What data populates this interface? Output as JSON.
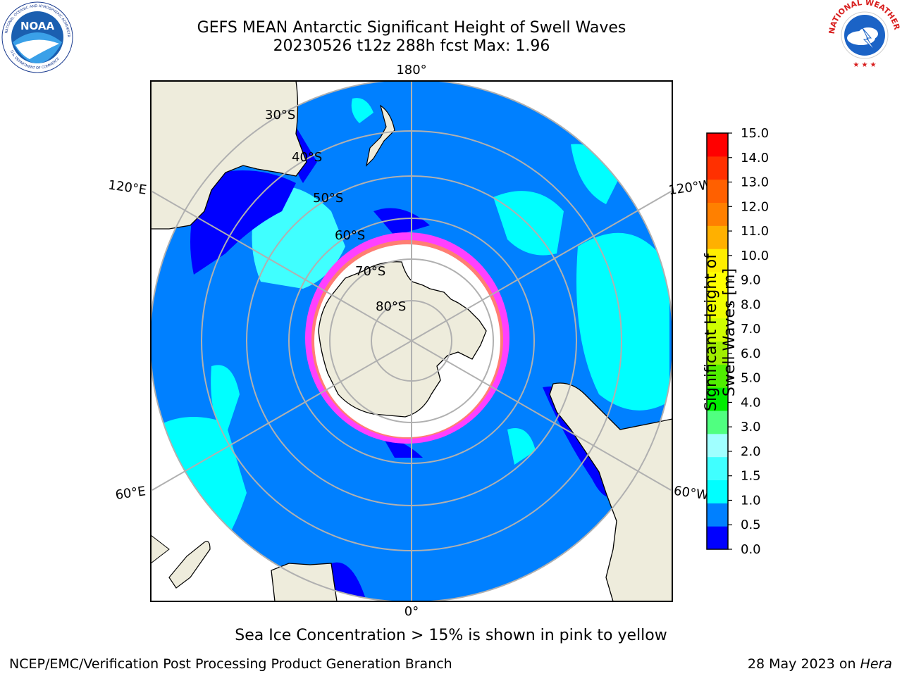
{
  "header": {
    "title_line1": "GEFS MEAN Antarctic Significant Height of Swell Waves",
    "title_line2": "20230526 t12z 288h fcst   Max: 1.96"
  },
  "logos": {
    "left": "NOAA",
    "right": "NATIONAL WEATHER SERVICE",
    "left_icon": "noaa-logo",
    "right_icon": "nws-logo"
  },
  "map": {
    "projection": "south-polar-stereographic",
    "lat_labels": [
      "30°S",
      "40°S",
      "50°S",
      "60°S",
      "70°S",
      "80°S"
    ],
    "lon_labels": {
      "top": "180°",
      "bottom": "0°",
      "left_upper": "120°E",
      "left_lower": "60°E",
      "right_upper": "120°W",
      "right_lower": "60°W"
    },
    "colors": {
      "ocean_main": "#0080ff",
      "ocean_low": "#0000ff",
      "ocean_mid": "#00ffff",
      "ocean_mid2": "#40ffff",
      "land": "#eeecdc",
      "sea_ice_edge": "#ff40ff",
      "sea_ice_inner": "#ffffff",
      "sea_ice_yellow": "#ffb000",
      "grid": "#b0b0b0"
    }
  },
  "colorbar": {
    "title": "Significant Height of Swell Waves [m]",
    "ticks": [
      "15.0",
      "14.0",
      "13.0",
      "12.0",
      "11.0",
      "10.0",
      "9.0",
      "8.0",
      "7.0",
      "6.0",
      "5.0",
      "4.0",
      "3.0",
      "2.0",
      "1.5",
      "1.0",
      "0.5",
      "0.0"
    ],
    "colors": [
      "#0000ff",
      "#0080ff",
      "#00ffff",
      "#40ffff",
      "#a0ffff",
      "#50ff80",
      "#00ee00",
      "#50ee00",
      "#a0ee00",
      "#d0ff00",
      "#f0ff00",
      "#ffff00",
      "#ffee00",
      "#ffb000",
      "#ff8000",
      "#ff6000",
      "#ff3000",
      "#ff0000"
    ]
  },
  "caption": "Sea Ice Concentration > 15% is shown in pink to yellow",
  "footer": {
    "left": "NCEP/EMC/Verification Post Processing Product Generation Branch",
    "date": "28 May 2023 on ",
    "machine": "Hera"
  }
}
